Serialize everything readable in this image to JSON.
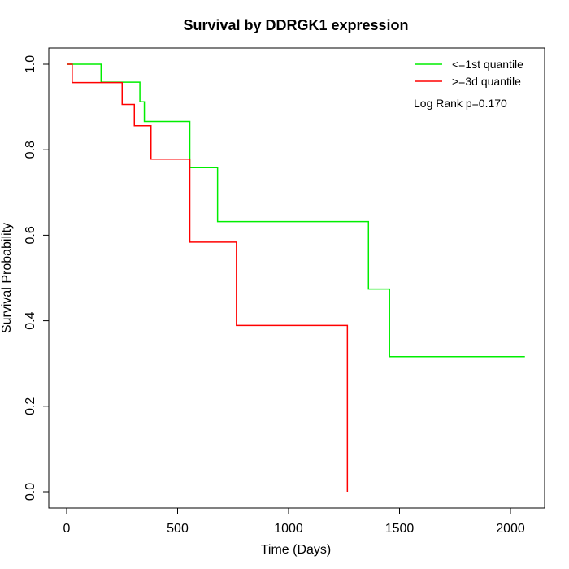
{
  "chart_data": {
    "type": "line",
    "step": true,
    "title": "Survival by DDRGK1 expression",
    "xlabel": "Time (Days)",
    "ylabel": "Survival Probability",
    "xlim": [
      0,
      2070
    ],
    "ylim": [
      0,
      1
    ],
    "x_ticks": [
      0,
      500,
      1000,
      1500,
      2000
    ],
    "x_tick_labels": [
      "0",
      "500",
      "1000",
      "1500",
      "2000"
    ],
    "y_ticks": [
      0,
      0.2,
      0.4,
      0.6,
      0.8,
      1
    ],
    "y_tick_labels": [
      "0.0",
      "0.2",
      "0.4",
      "0.6",
      "0.8",
      "1.0"
    ],
    "grid": false,
    "legend_position": "top-right",
    "annotation": "Log Rank p=0.170",
    "series": [
      {
        "name": "<=1st quantile",
        "color": "#00ee00",
        "x": [
          0,
          155,
          330,
          350,
          555,
          680,
          1360,
          1455,
          2065
        ],
        "y": [
          1.0,
          0.958,
          0.912,
          0.866,
          0.758,
          0.632,
          0.474,
          0.316,
          0.316
        ]
      },
      {
        "name": ">=3d quantile",
        "color": "#ff0000",
        "x": [
          0,
          25,
          250,
          305,
          380,
          555,
          765,
          1265
        ],
        "y": [
          1.0,
          0.957,
          0.906,
          0.856,
          0.778,
          0.584,
          0.389,
          0.0
        ]
      }
    ]
  }
}
